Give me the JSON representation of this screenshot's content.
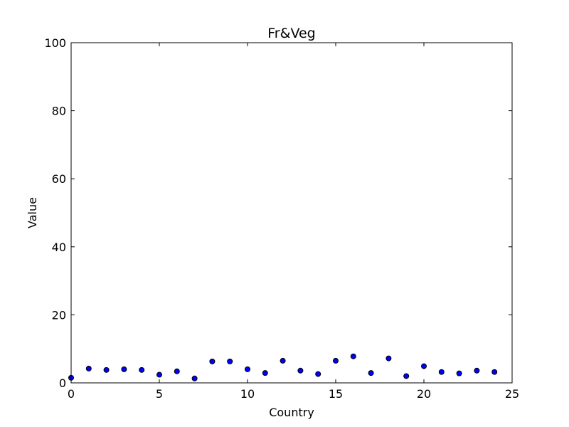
{
  "chart_data": {
    "type": "scatter",
    "title": "Fr&Veg",
    "xlabel": "Country",
    "ylabel": "Value",
    "xlim": [
      0,
      25
    ],
    "ylim": [
      0,
      100
    ],
    "xticks": [
      "0",
      "5",
      "10",
      "15",
      "20",
      "25"
    ],
    "yticks": [
      "0",
      "20",
      "40",
      "60",
      "80",
      "100"
    ],
    "grid": false,
    "legend": "none",
    "marker_color": "#0000ff",
    "marker_edge_color": "#000000",
    "x": [
      0,
      1,
      2,
      3,
      4,
      5,
      6,
      7,
      8,
      9,
      10,
      11,
      12,
      13,
      14,
      15,
      16,
      17,
      18,
      19,
      20,
      21,
      22,
      23,
      24
    ],
    "y": [
      1.5,
      4.2,
      3.8,
      4.0,
      3.8,
      2.4,
      3.4,
      1.3,
      6.3,
      6.3,
      4.0,
      2.9,
      6.5,
      3.6,
      2.6,
      6.5,
      7.8,
      2.9,
      7.2,
      2.0,
      4.9,
      3.2,
      2.8,
      3.6,
      3.2
    ]
  }
}
